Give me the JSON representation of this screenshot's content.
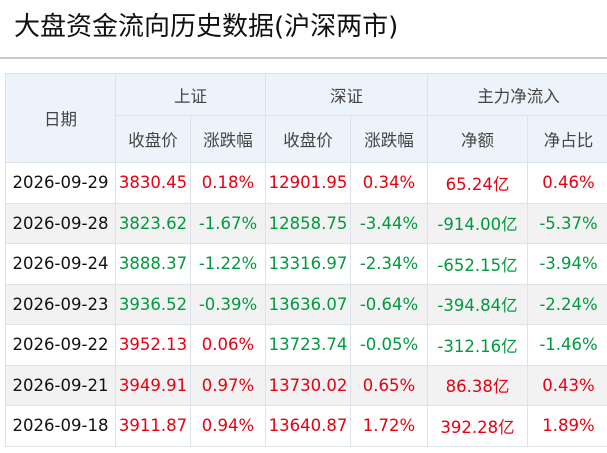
{
  "header": {
    "title": "大盘资金流向历史数据(沪深两市)"
  },
  "table": {
    "date_header": "日期",
    "groups": [
      {
        "label": "上证",
        "sub": [
          "收盘价",
          "涨跌幅"
        ]
      },
      {
        "label": "深证",
        "sub": [
          "收盘价",
          "涨跌幅"
        ]
      },
      {
        "label": "主力净流入",
        "sub": [
          "净额",
          "净占比"
        ]
      }
    ],
    "rows": [
      [
        "2026-09-29",
        "3830.45",
        "0.18%",
        "12901.95",
        "0.34%",
        "65.24亿",
        "0.46%"
      ],
      [
        "2026-09-28",
        "3823.62",
        "-1.67%",
        "12858.75",
        "-3.44%",
        "-914.00亿",
        "-5.37%"
      ],
      [
        "2026-09-24",
        "3888.37",
        "-1.22%",
        "13316.97",
        "-2.34%",
        "-652.15亿",
        "-3.94%"
      ],
      [
        "2026-09-23",
        "3936.52",
        "-0.39%",
        "13636.07",
        "-0.64%",
        "-394.84亿",
        "-2.24%"
      ],
      [
        "2026-09-22",
        "3952.13",
        "0.06%",
        "13723.74",
        "-0.05%",
        "-312.16亿",
        "-1.46%"
      ],
      [
        "2026-09-21",
        "3949.91",
        "0.97%",
        "13730.02",
        "0.65%",
        "86.38亿",
        "0.43%"
      ],
      [
        "2026-09-18",
        "3911.87",
        "0.94%",
        "13640.87",
        "1.72%",
        "392.28亿",
        "1.89%"
      ]
    ],
    "colors": {
      "up": "#e60012",
      "down": "#009a3e"
    }
  }
}
